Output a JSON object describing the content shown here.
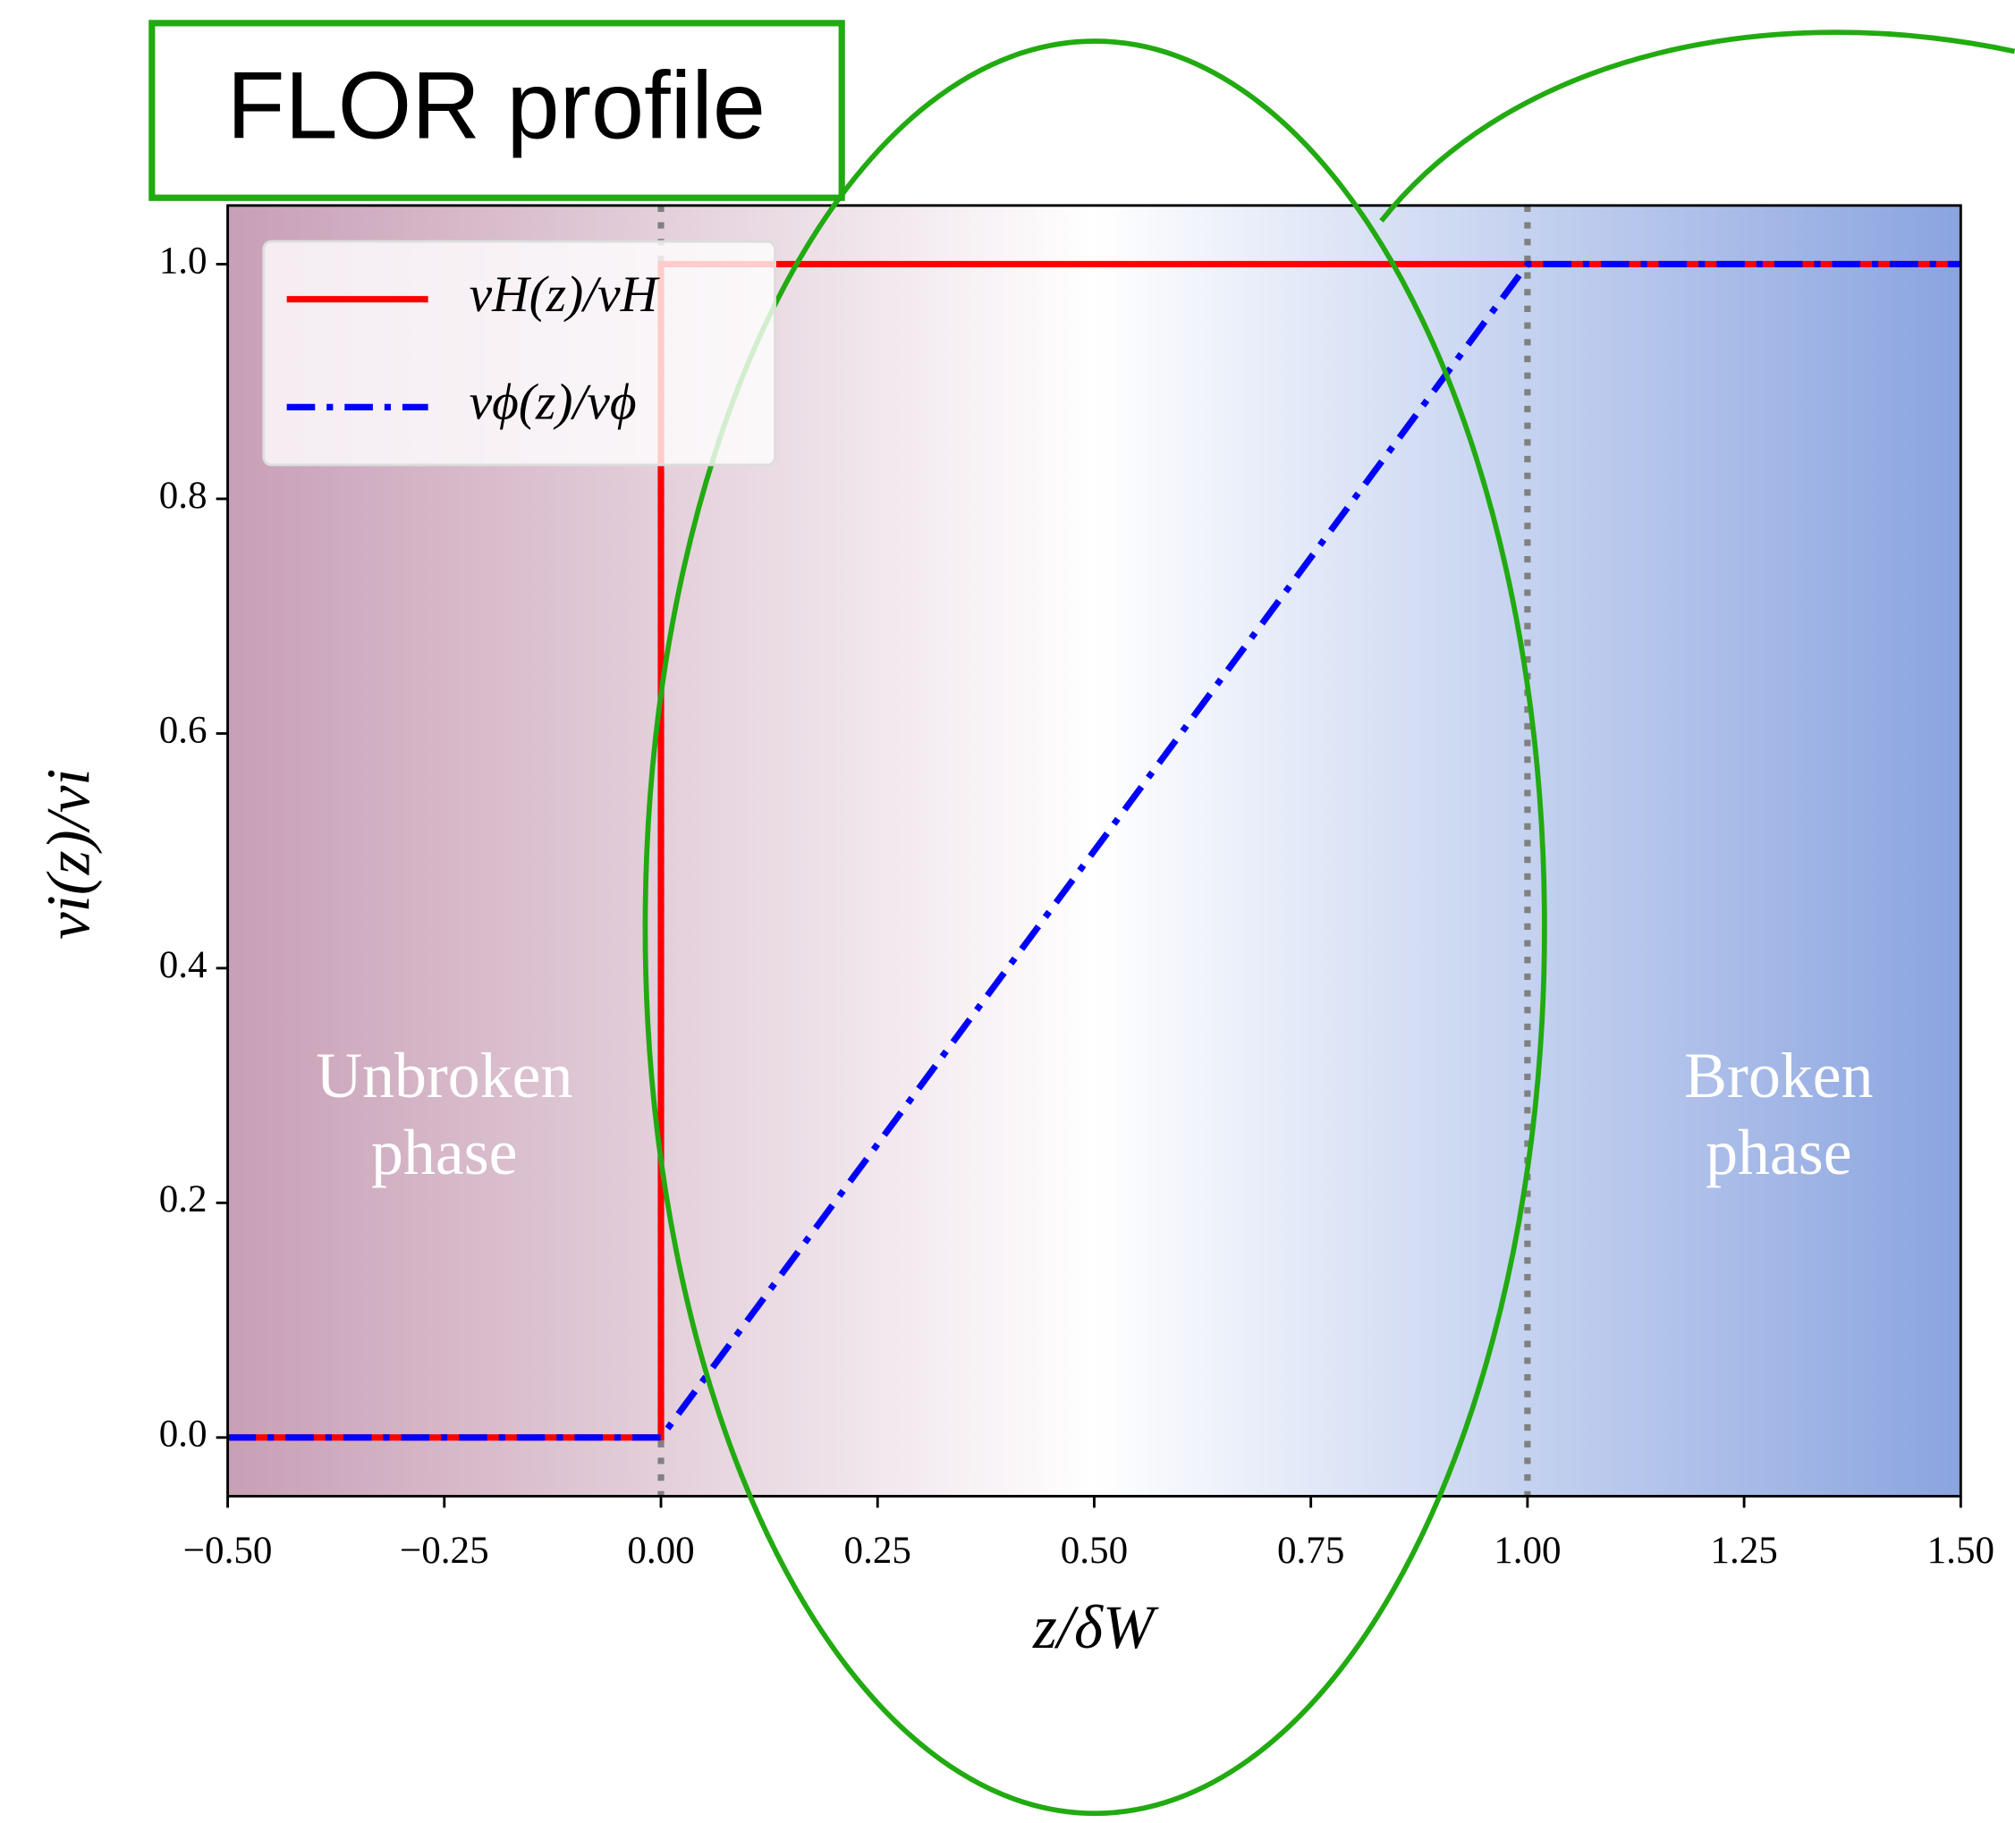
{
  "chart_data": {
    "type": "line",
    "title": "FLOR profile",
    "x_label": "z/δW",
    "y_label": "vi(z)/vi",
    "series": [
      {
        "name": "vH(z)/vH",
        "color": "#ff0000",
        "style": "solid",
        "x": [
          -0.5,
          0,
          0,
          1.5
        ],
        "values": [
          0,
          0,
          1,
          1
        ]
      },
      {
        "name": "vϕ(z)/vϕ",
        "color": "#0000ff",
        "style": "dashdot",
        "x": [
          -0.5,
          0,
          1,
          1.5
        ],
        "values": [
          0,
          0,
          1,
          1
        ]
      }
    ],
    "xlim": [
      -0.5,
      1.5
    ],
    "ylim": [
      -0.05,
      1.05
    ],
    "xticks": [
      {
        "value": -0.5,
        "label": "−0.50"
      },
      {
        "value": -0.25,
        "label": "−0.25"
      },
      {
        "value": 0,
        "label": "0.00"
      },
      {
        "value": 0.25,
        "label": "0.25"
      },
      {
        "value": 0.5,
        "label": "0.50"
      },
      {
        "value": 0.75,
        "label": "0.75"
      },
      {
        "value": 1,
        "label": "1.00"
      },
      {
        "value": 1.25,
        "label": "1.25"
      },
      {
        "value": 1.5,
        "label": "1.50"
      }
    ],
    "yticks": [
      {
        "value": 0,
        "label": "0.0"
      },
      0.2,
      0.4,
      0.6,
      0.8,
      {
        "value": 1,
        "label": "1.0"
      }
    ],
    "vlines": [
      0,
      1
    ],
    "vline_color": "#808080",
    "background_colors": [
      "#c89fb6",
      "#ffffff",
      "#8aa4e0"
    ],
    "legend": "upper left",
    "annotations": [
      {
        "lines": [
          "Unbroken",
          "phase"
        ],
        "x": -0.25,
        "y": 0.27
      },
      {
        "lines": [
          "Broken",
          "phase"
        ],
        "x": 1.29,
        "y": 0.27
      }
    ]
  }
}
